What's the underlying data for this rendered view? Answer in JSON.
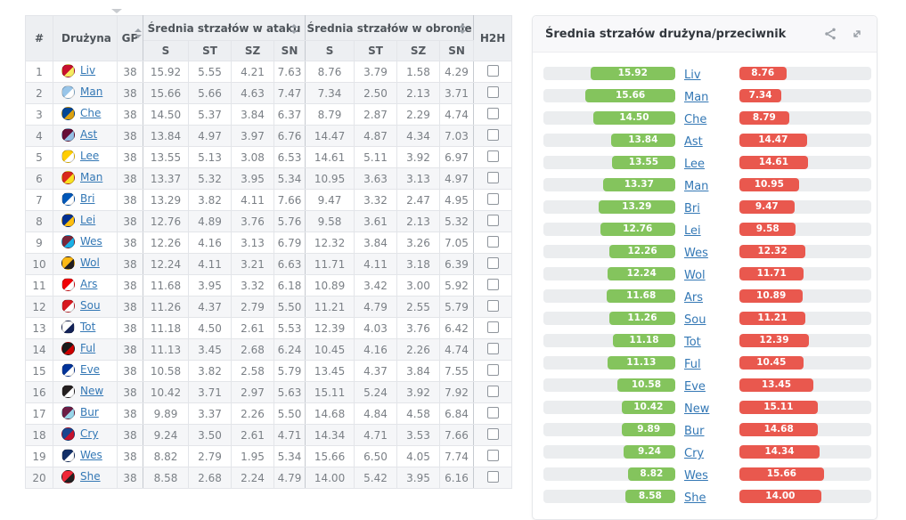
{
  "colors": {
    "team_bar": "#84c45d",
    "opponent_bar": "#e9584e",
    "link": "#3478b5",
    "track": "#ebedef"
  },
  "icons": {
    "share": "share-icon",
    "expand": "expand-icon",
    "sort": "sort-arrows-icon",
    "hint": "caret-down-icon"
  },
  "table": {
    "columns": {
      "rank": "#",
      "team": "Drużyna",
      "gp": "GP",
      "attack_group": "Średnia strzałów w ataku",
      "defense_group": "Średnia strzałów w obronie",
      "sub": [
        "S",
        "ST",
        "SZ",
        "SN"
      ],
      "h2h": "H2H"
    },
    "rows": [
      {
        "rank": "1",
        "team": "Liv",
        "gp": "38",
        "attack": [
          "15.92",
          "5.55",
          "4.21",
          "7.63"
        ],
        "defense": [
          "8.76",
          "3.79",
          "1.58",
          "4.29"
        ],
        "logo": [
          "#c8102e",
          "#f6eb61"
        ]
      },
      {
        "rank": "2",
        "team": "Man",
        "gp": "38",
        "attack": [
          "15.66",
          "5.66",
          "4.63",
          "7.47"
        ],
        "defense": [
          "7.34",
          "2.50",
          "2.13",
          "3.71"
        ],
        "logo": [
          "#98c5e9",
          "#ffffff"
        ]
      },
      {
        "rank": "3",
        "team": "Che",
        "gp": "38",
        "attack": [
          "14.50",
          "5.37",
          "3.84",
          "6.37"
        ],
        "defense": [
          "8.79",
          "2.87",
          "2.29",
          "4.74"
        ],
        "logo": [
          "#034694",
          "#dba111"
        ]
      },
      {
        "rank": "4",
        "team": "Ast",
        "gp": "38",
        "attack": [
          "13.84",
          "4.97",
          "3.97",
          "6.76"
        ],
        "defense": [
          "14.47",
          "4.87",
          "4.34",
          "7.03"
        ],
        "logo": [
          "#670e36",
          "#95bfe5"
        ]
      },
      {
        "rank": "5",
        "team": "Lee",
        "gp": "38",
        "attack": [
          "13.55",
          "5.13",
          "3.08",
          "6.53"
        ],
        "defense": [
          "14.61",
          "5.11",
          "3.92",
          "6.97"
        ],
        "logo": [
          "#ffcd00",
          "#ffffff"
        ]
      },
      {
        "rank": "6",
        "team": "Man",
        "gp": "38",
        "attack": [
          "13.37",
          "5.32",
          "3.95",
          "5.34"
        ],
        "defense": [
          "10.95",
          "3.63",
          "3.13",
          "4.97"
        ],
        "logo": [
          "#da291c",
          "#fbe122"
        ]
      },
      {
        "rank": "7",
        "team": "Bri",
        "gp": "38",
        "attack": [
          "13.29",
          "3.82",
          "4.11",
          "7.66"
        ],
        "defense": [
          "9.47",
          "3.32",
          "2.47",
          "4.95"
        ],
        "logo": [
          "#0057b8",
          "#ffffff"
        ]
      },
      {
        "rank": "8",
        "team": "Lei",
        "gp": "38",
        "attack": [
          "12.76",
          "4.89",
          "3.76",
          "5.76"
        ],
        "defense": [
          "9.58",
          "3.61",
          "2.13",
          "5.32"
        ],
        "logo": [
          "#003090",
          "#fdbe11"
        ]
      },
      {
        "rank": "9",
        "team": "Wes",
        "gp": "38",
        "attack": [
          "12.26",
          "4.16",
          "3.13",
          "6.79"
        ],
        "defense": [
          "12.32",
          "3.84",
          "3.26",
          "7.05"
        ],
        "logo": [
          "#7a263a",
          "#1bb1e7"
        ]
      },
      {
        "rank": "10",
        "team": "Wol",
        "gp": "38",
        "attack": [
          "12.24",
          "4.11",
          "3.21",
          "6.63"
        ],
        "defense": [
          "11.71",
          "4.11",
          "3.18",
          "6.39"
        ],
        "logo": [
          "#fdb913",
          "#231f20"
        ]
      },
      {
        "rank": "11",
        "team": "Ars",
        "gp": "38",
        "attack": [
          "11.68",
          "3.95",
          "3.32",
          "6.18"
        ],
        "defense": [
          "10.89",
          "3.42",
          "3.00",
          "5.92"
        ],
        "logo": [
          "#ef0107",
          "#ffffff"
        ]
      },
      {
        "rank": "12",
        "team": "Sou",
        "gp": "38",
        "attack": [
          "11.26",
          "4.37",
          "2.79",
          "5.50"
        ],
        "defense": [
          "11.21",
          "4.79",
          "2.55",
          "5.79"
        ],
        "logo": [
          "#d71920",
          "#ffffff"
        ]
      },
      {
        "rank": "13",
        "team": "Tot",
        "gp": "38",
        "attack": [
          "11.18",
          "4.50",
          "2.61",
          "5.53"
        ],
        "defense": [
          "12.39",
          "4.03",
          "3.76",
          "6.42"
        ],
        "logo": [
          "#ffffff",
          "#132257"
        ]
      },
      {
        "rank": "14",
        "team": "Ful",
        "gp": "38",
        "attack": [
          "11.13",
          "3.45",
          "2.68",
          "6.24"
        ],
        "defense": [
          "10.45",
          "4.16",
          "2.26",
          "4.74"
        ],
        "logo": [
          "#1b1b1b",
          "#cc0000"
        ]
      },
      {
        "rank": "15",
        "team": "Eve",
        "gp": "38",
        "attack": [
          "10.58",
          "3.82",
          "2.58",
          "5.79"
        ],
        "defense": [
          "13.45",
          "4.37",
          "3.84",
          "7.55"
        ],
        "logo": [
          "#003399",
          "#ffffff"
        ]
      },
      {
        "rank": "16",
        "team": "New",
        "gp": "38",
        "attack": [
          "10.42",
          "3.71",
          "2.97",
          "5.63"
        ],
        "defense": [
          "15.11",
          "5.24",
          "3.92",
          "7.92"
        ],
        "logo": [
          "#241f20",
          "#ffffff"
        ]
      },
      {
        "rank": "17",
        "team": "Bur",
        "gp": "38",
        "attack": [
          "9.89",
          "3.37",
          "2.26",
          "5.50"
        ],
        "defense": [
          "14.68",
          "4.84",
          "4.58",
          "6.84"
        ],
        "logo": [
          "#6c1d45",
          "#99d6ea"
        ]
      },
      {
        "rank": "18",
        "team": "Cry",
        "gp": "38",
        "attack": [
          "9.24",
          "3.50",
          "2.61",
          "4.71"
        ],
        "defense": [
          "14.34",
          "4.71",
          "3.53",
          "7.66"
        ],
        "logo": [
          "#1b458f",
          "#c4122e"
        ]
      },
      {
        "rank": "19",
        "team": "Wes",
        "gp": "38",
        "attack": [
          "8.82",
          "2.79",
          "1.95",
          "5.34"
        ],
        "defense": [
          "15.66",
          "6.50",
          "4.05",
          "7.74"
        ],
        "logo": [
          "#122f67",
          "#ffffff"
        ]
      },
      {
        "rank": "20",
        "team": "She",
        "gp": "38",
        "attack": [
          "8.58",
          "2.68",
          "2.24",
          "4.79"
        ],
        "defense": [
          "14.00",
          "5.42",
          "3.95",
          "6.16"
        ],
        "logo": [
          "#ee2737",
          "#241f20"
        ]
      }
    ]
  },
  "chart": {
    "type": "bar",
    "title": "Średnia strzałów drużyna/przeciwnik",
    "legend": {
      "team_series": "drużyna",
      "opponent_series": "przeciwnik"
    },
    "rows": [
      {
        "team": "Liv",
        "team_value": "15.92",
        "opponent_value": "8.76"
      },
      {
        "team": "Man",
        "team_value": "15.66",
        "opponent_value": "7.34"
      },
      {
        "team": "Che",
        "team_value": "14.50",
        "opponent_value": "8.79"
      },
      {
        "team": "Ast",
        "team_value": "13.84",
        "opponent_value": "14.47"
      },
      {
        "team": "Lee",
        "team_value": "13.55",
        "opponent_value": "14.61"
      },
      {
        "team": "Man",
        "team_value": "13.37",
        "opponent_value": "10.95"
      },
      {
        "team": "Bri",
        "team_value": "13.29",
        "opponent_value": "9.47"
      },
      {
        "team": "Lei",
        "team_value": "12.76",
        "opponent_value": "9.58"
      },
      {
        "team": "Wes",
        "team_value": "12.26",
        "opponent_value": "12.32"
      },
      {
        "team": "Wol",
        "team_value": "12.24",
        "opponent_value": "11.71"
      },
      {
        "team": "Ars",
        "team_value": "11.68",
        "opponent_value": "10.89"
      },
      {
        "team": "Sou",
        "team_value": "11.26",
        "opponent_value": "11.21"
      },
      {
        "team": "Tot",
        "team_value": "11.18",
        "opponent_value": "12.39"
      },
      {
        "team": "Ful",
        "team_value": "11.13",
        "opponent_value": "10.45"
      },
      {
        "team": "Eve",
        "team_value": "10.58",
        "opponent_value": "13.45"
      },
      {
        "team": "New",
        "team_value": "10.42",
        "opponent_value": "15.11"
      },
      {
        "team": "Bur",
        "team_value": "9.89",
        "opponent_value": "14.68"
      },
      {
        "team": "Cry",
        "team_value": "9.24",
        "opponent_value": "14.34"
      },
      {
        "team": "Wes",
        "team_value": "8.82",
        "opponent_value": "15.66"
      },
      {
        "team": "She",
        "team_value": "8.58",
        "opponent_value": "14.00"
      }
    ]
  }
}
